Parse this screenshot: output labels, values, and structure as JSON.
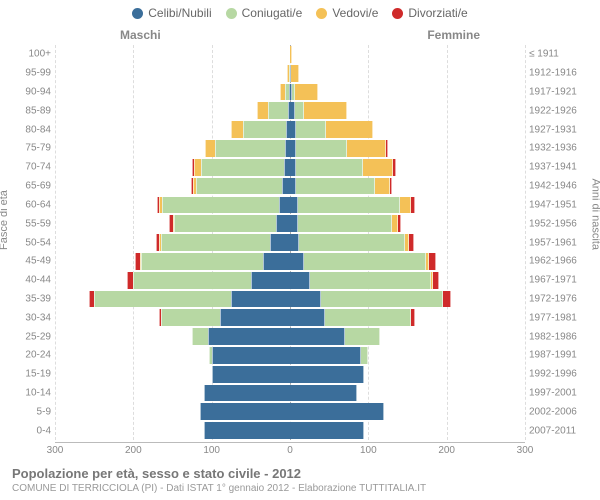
{
  "legend": {
    "items": [
      {
        "label": "Celibi/Nubili",
        "color": "#3b6e9a"
      },
      {
        "label": "Coniugati/e",
        "color": "#b7d8a3"
      },
      {
        "label": "Vedovi/e",
        "color": "#f4c157"
      },
      {
        "label": "Divorziati/e",
        "color": "#cf2a2a"
      }
    ]
  },
  "gender": {
    "male": "Maschi",
    "female": "Femmine"
  },
  "axes": {
    "left_title": "Fasce di età",
    "right_title": "Anni di nascita",
    "x_max": 300,
    "x_ticks": [
      -300,
      -200,
      -100,
      0,
      100,
      200,
      300
    ],
    "x_tick_labels": [
      "300",
      "200",
      "100",
      "0",
      "100",
      "200",
      "300"
    ]
  },
  "colors": {
    "single": "#3b6e9a",
    "married": "#b7d8a3",
    "widowed": "#f4c157",
    "divorced": "#cf2a2a",
    "grid": "#dddddd",
    "center": "#aaaaaa",
    "background": "#ffffff",
    "text": "#888888"
  },
  "rows": [
    {
      "age": "0-4",
      "birth": "2007-2011",
      "m": {
        "s": 110,
        "c": 0,
        "w": 0,
        "d": 0
      },
      "f": {
        "s": 95,
        "c": 0,
        "w": 0,
        "d": 0
      }
    },
    {
      "age": "5-9",
      "birth": "2002-2006",
      "m": {
        "s": 115,
        "c": 0,
        "w": 0,
        "d": 0
      },
      "f": {
        "s": 120,
        "c": 0,
        "w": 0,
        "d": 0
      }
    },
    {
      "age": "10-14",
      "birth": "1997-2001",
      "m": {
        "s": 110,
        "c": 0,
        "w": 0,
        "d": 0
      },
      "f": {
        "s": 85,
        "c": 0,
        "w": 0,
        "d": 0
      }
    },
    {
      "age": "15-19",
      "birth": "1992-1996",
      "m": {
        "s": 100,
        "c": 0,
        "w": 0,
        "d": 0
      },
      "f": {
        "s": 95,
        "c": 0,
        "w": 0,
        "d": 0
      }
    },
    {
      "age": "20-24",
      "birth": "1987-1991",
      "m": {
        "s": 100,
        "c": 3,
        "w": 0,
        "d": 0
      },
      "f": {
        "s": 90,
        "c": 10,
        "w": 0,
        "d": 0
      }
    },
    {
      "age": "25-29",
      "birth": "1982-1986",
      "m": {
        "s": 105,
        "c": 20,
        "w": 0,
        "d": 0
      },
      "f": {
        "s": 70,
        "c": 45,
        "w": 0,
        "d": 0
      }
    },
    {
      "age": "30-34",
      "birth": "1977-1981",
      "m": {
        "s": 90,
        "c": 75,
        "w": 0,
        "d": 2
      },
      "f": {
        "s": 45,
        "c": 110,
        "w": 0,
        "d": 4
      }
    },
    {
      "age": "35-39",
      "birth": "1972-1976",
      "m": {
        "s": 75,
        "c": 175,
        "w": 0,
        "d": 6
      },
      "f": {
        "s": 40,
        "c": 155,
        "w": 0,
        "d": 10
      }
    },
    {
      "age": "40-44",
      "birth": "1967-1971",
      "m": {
        "s": 50,
        "c": 150,
        "w": 0,
        "d": 8
      },
      "f": {
        "s": 25,
        "c": 155,
        "w": 2,
        "d": 8
      }
    },
    {
      "age": "45-49",
      "birth": "1962-1966",
      "m": {
        "s": 35,
        "c": 155,
        "w": 2,
        "d": 6
      },
      "f": {
        "s": 18,
        "c": 155,
        "w": 4,
        "d": 10
      }
    },
    {
      "age": "50-54",
      "birth": "1957-1961",
      "m": {
        "s": 25,
        "c": 140,
        "w": 2,
        "d": 4
      },
      "f": {
        "s": 12,
        "c": 135,
        "w": 5,
        "d": 6
      }
    },
    {
      "age": "55-59",
      "birth": "1952-1956",
      "m": {
        "s": 18,
        "c": 130,
        "w": 2,
        "d": 4
      },
      "f": {
        "s": 10,
        "c": 120,
        "w": 8,
        "d": 4
      }
    },
    {
      "age": "60-64",
      "birth": "1947-1951",
      "m": {
        "s": 14,
        "c": 150,
        "w": 3,
        "d": 3
      },
      "f": {
        "s": 10,
        "c": 130,
        "w": 15,
        "d": 4
      }
    },
    {
      "age": "65-69",
      "birth": "1942-1946",
      "m": {
        "s": 10,
        "c": 110,
        "w": 4,
        "d": 2
      },
      "f": {
        "s": 8,
        "c": 100,
        "w": 20,
        "d": 2
      }
    },
    {
      "age": "70-74",
      "birth": "1937-1941",
      "m": {
        "s": 8,
        "c": 105,
        "w": 10,
        "d": 2
      },
      "f": {
        "s": 8,
        "c": 85,
        "w": 38,
        "d": 4
      }
    },
    {
      "age": "75-79",
      "birth": "1932-1936",
      "m": {
        "s": 6,
        "c": 90,
        "w": 12,
        "d": 0
      },
      "f": {
        "s": 8,
        "c": 65,
        "w": 50,
        "d": 2
      }
    },
    {
      "age": "80-84",
      "birth": "1927-1931",
      "m": {
        "s": 5,
        "c": 55,
        "w": 15,
        "d": 0
      },
      "f": {
        "s": 8,
        "c": 38,
        "w": 60,
        "d": 0
      }
    },
    {
      "age": "85-89",
      "birth": "1922-1926",
      "m": {
        "s": 3,
        "c": 25,
        "w": 14,
        "d": 0
      },
      "f": {
        "s": 6,
        "c": 12,
        "w": 55,
        "d": 0
      }
    },
    {
      "age": "90-94",
      "birth": "1917-1921",
      "m": {
        "s": 1,
        "c": 5,
        "w": 6,
        "d": 0
      },
      "f": {
        "s": 3,
        "c": 3,
        "w": 30,
        "d": 0
      }
    },
    {
      "age": "95-99",
      "birth": "1912-1916",
      "m": {
        "s": 0,
        "c": 1,
        "w": 2,
        "d": 0
      },
      "f": {
        "s": 1,
        "c": 0,
        "w": 10,
        "d": 0
      }
    },
    {
      "age": "100+",
      "birth": "≤ 1911",
      "m": {
        "s": 0,
        "c": 0,
        "w": 0,
        "d": 0
      },
      "f": {
        "s": 0,
        "c": 0,
        "w": 2,
        "d": 0
      }
    }
  ],
  "footer": {
    "title": "Popolazione per età, sesso e stato civile - 2012",
    "subtitle": "COMUNE DI TERRICCIOLA (PI) - Dati ISTAT 1° gennaio 2012 - Elaborazione TUTTITALIA.IT"
  }
}
